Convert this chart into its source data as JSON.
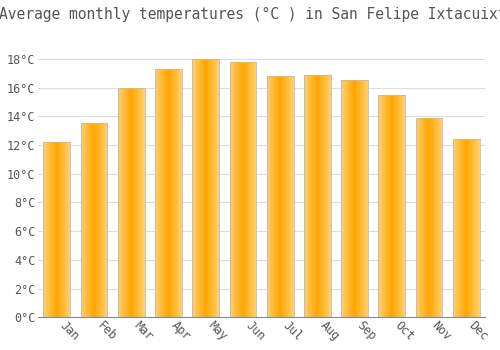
{
  "title": "Average monthly temperatures (°C ) in San Felipe Ixtacuixtla",
  "months": [
    "Jan",
    "Feb",
    "Mar",
    "Apr",
    "May",
    "Jun",
    "Jul",
    "Aug",
    "Sep",
    "Oct",
    "Nov",
    "Dec"
  ],
  "values": [
    12.2,
    13.5,
    16.0,
    17.3,
    18.0,
    17.8,
    16.8,
    16.9,
    16.5,
    15.5,
    13.9,
    12.4
  ],
  "bar_color_center": "#FFA500",
  "bar_color_edge": "#FFD070",
  "bar_border_color": "#BBBBBB",
  "background_color": "#FFFFFF",
  "grid_color": "#DDDDDD",
  "text_color": "#555555",
  "ylim": [
    0,
    20
  ],
  "yticks": [
    0,
    2,
    4,
    6,
    8,
    10,
    12,
    14,
    16,
    18
  ],
  "title_fontsize": 10.5,
  "tick_fontsize": 8.5,
  "bar_width": 0.72
}
